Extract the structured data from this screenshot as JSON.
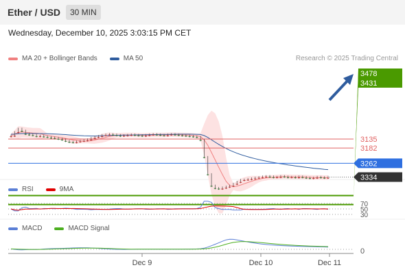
{
  "header": {
    "title": "Ether / USD",
    "interval": "30 MIN"
  },
  "datetime": "Wednesday, December 10, 2025 3:03:15 PM CET",
  "legend_main": [
    {
      "label": "MA 20 + Bollinger Bands",
      "color": "#f08080"
    },
    {
      "label": "MA 50",
      "color": "#2f5c9e"
    }
  ],
  "credit": "Research © 2025 Trading Central",
  "legend_rsi": [
    {
      "label": "RSI",
      "color": "#5b7fd6"
    },
    {
      "label": "9MA",
      "color": "#e00000"
    }
  ],
  "legend_macd": [
    {
      "label": "MACD",
      "color": "#5b7fd6"
    },
    {
      "label": "MACD Signal",
      "color": "#4caf20"
    }
  ],
  "chart_data": {
    "type": "candlestick",
    "x_labels": [
      "Dec 9",
      "Dec 10",
      "Dec 11"
    ],
    "price_levels": [
      {
        "value": 3478,
        "label": "3478",
        "style": "resistance",
        "color": "#4a9a00"
      },
      {
        "value": 3431,
        "label": "3431",
        "style": "resistance",
        "color": "#4a9a00"
      },
      {
        "value": 3334,
        "label": "3334",
        "style": "last",
        "color": "#333333"
      },
      {
        "value": 3262,
        "label": "3262",
        "style": "pivot",
        "color": "#2e6fe0"
      },
      {
        "value": 3182,
        "label": "3182",
        "style": "support",
        "color": "#e06060"
      },
      {
        "value": 3135,
        "label": "3135",
        "style": "support",
        "color": "#e06060"
      }
    ],
    "price_series": [
      3118,
      3100,
      3082,
      3092,
      3108,
      3112,
      3115,
      3120,
      3118,
      3122,
      3125,
      3128,
      3130,
      3134,
      3138,
      3145,
      3150,
      3152,
      3148,
      3145,
      3142,
      3138,
      3130,
      3125,
      3120,
      3115,
      3112,
      3110,
      3112,
      3115,
      3118,
      3116,
      3114,
      3112,
      3114,
      3116,
      3118,
      3115,
      3112,
      3110,
      3112,
      3114,
      3116,
      3112,
      3110,
      3112,
      3114,
      3116,
      3118,
      3120,
      3122,
      3125,
      3140,
      3230,
      3320,
      3380,
      3392,
      3395,
      3390,
      3385,
      3380,
      3370,
      3360,
      3350,
      3348,
      3345,
      3342,
      3338,
      3335,
      3332,
      3330,
      3332,
      3335,
      3334,
      3330,
      3332,
      3335,
      3334,
      3336,
      3332,
      3335,
      3338,
      3340,
      3338,
      3334,
      3336,
      3338,
      3334
    ],
    "rsi": {
      "levels": [
        70,
        50,
        30
      ],
      "labels": [
        "70",
        "50",
        "30"
      ]
    },
    "macd": {
      "zero_label": "0"
    }
  }
}
